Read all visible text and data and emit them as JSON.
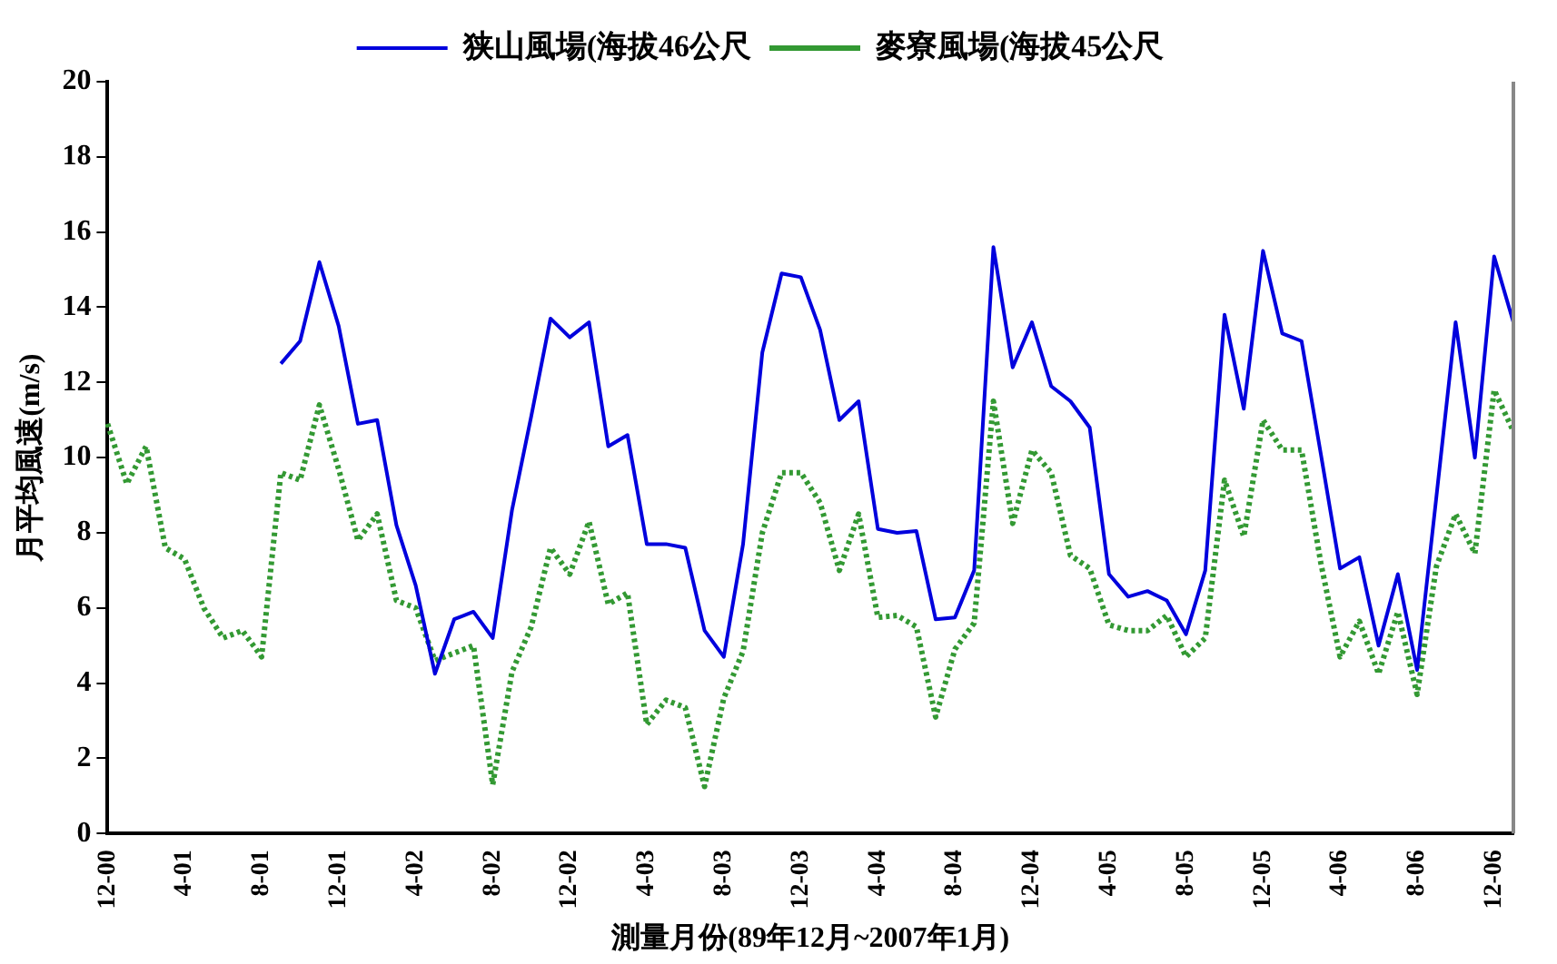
{
  "chart_data": {
    "type": "line",
    "xlabel": "測量月份(89年12月~2007年1月)",
    "ylabel": "月平均風速(m/s)",
    "categories": [
      "12-00",
      null,
      null,
      null,
      "4-01",
      null,
      null,
      null,
      "8-01",
      null,
      null,
      null,
      "12-01",
      null,
      null,
      null,
      "4-02",
      null,
      null,
      null,
      "8-02",
      null,
      null,
      null,
      "12-02",
      null,
      null,
      null,
      "4-03",
      null,
      null,
      null,
      "8-03",
      null,
      null,
      null,
      "12-03",
      null,
      null,
      null,
      "4-04",
      null,
      null,
      null,
      "8-04",
      null,
      null,
      null,
      "12-04",
      null,
      null,
      null,
      "4-05",
      null,
      null,
      null,
      "8-05",
      null,
      null,
      null,
      "12-05",
      null,
      null,
      null,
      "4-06",
      null,
      null,
      null,
      "8-06",
      null,
      null,
      null,
      "12-06",
      null
    ],
    "series": [
      {
        "name": "狭山風場(海拔46公尺",
        "color": "#0000dd",
        "line_style": "solid",
        "values": [
          null,
          null,
          null,
          null,
          null,
          null,
          null,
          null,
          null,
          12.5,
          13.1,
          15.2,
          13.5,
          10.9,
          11.0,
          8.2,
          6.6,
          4.25,
          5.7,
          5.9,
          5.2,
          8.6,
          11.1,
          13.7,
          13.2,
          13.6,
          10.3,
          10.6,
          7.7,
          7.7,
          7.6,
          5.4,
          4.7,
          7.7,
          12.8,
          14.9,
          14.8,
          13.4,
          11.0,
          11.5,
          8.1,
          8.0,
          8.05,
          5.7,
          5.75,
          7.0,
          15.6,
          12.4,
          13.6,
          11.9,
          11.5,
          10.8,
          6.9,
          6.3,
          6.45,
          6.2,
          5.3,
          7.0,
          13.8,
          11.3,
          15.5,
          13.3,
          13.1,
          10.1,
          7.05,
          7.35,
          5.0,
          6.9,
          4.35,
          8.95,
          13.6,
          10.0,
          15.35,
          13.6
        ]
      },
      {
        "name": "麥寮風場(海拔45公尺",
        "color": "#339933",
        "line_style": "dotted",
        "values": [
          10.9,
          9.3,
          10.3,
          7.6,
          7.3,
          6.0,
          5.2,
          5.4,
          4.7,
          9.6,
          9.4,
          11.4,
          9.7,
          7.8,
          8.5,
          6.2,
          6.0,
          4.6,
          4.8,
          5.0,
          1.3,
          4.3,
          5.5,
          7.6,
          6.9,
          8.3,
          6.1,
          6.4,
          2.9,
          3.55,
          3.35,
          1.25,
          3.6,
          4.85,
          8.0,
          9.6,
          9.6,
          8.8,
          7.0,
          8.5,
          5.75,
          5.8,
          5.5,
          3.1,
          4.9,
          5.6,
          11.5,
          8.25,
          10.2,
          9.6,
          7.4,
          7.05,
          5.55,
          5.4,
          5.4,
          5.8,
          4.7,
          5.2,
          9.4,
          7.9,
          11.0,
          10.2,
          10.2,
          7.2,
          4.7,
          5.65,
          4.25,
          5.9,
          3.7,
          7.1,
          8.5,
          7.45,
          11.8,
          10.7
        ]
      }
    ],
    "ylim": [
      0,
      20
    ],
    "yticks": [
      0,
      2,
      4,
      6,
      8,
      10,
      12,
      14,
      16,
      18,
      20
    ],
    "grid": false,
    "legend": "top",
    "marker": "none"
  }
}
